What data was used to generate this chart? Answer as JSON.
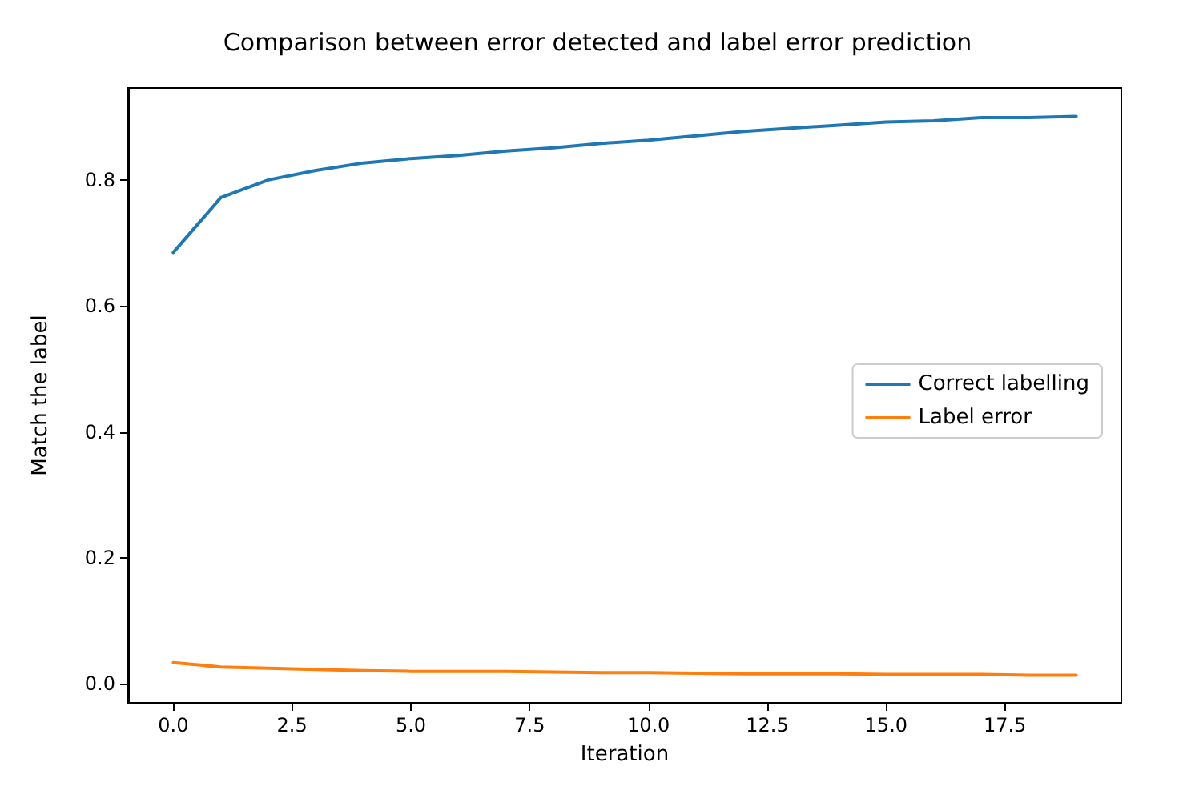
{
  "chart_data": {
    "type": "line",
    "title": "Comparison between error detected and label error prediction",
    "xlabel": "Iteration",
    "ylabel": "Match the label",
    "x": [
      0,
      1,
      2,
      3,
      4,
      5,
      6,
      7,
      8,
      9,
      10,
      11,
      12,
      13,
      14,
      15,
      16,
      17,
      18,
      19
    ],
    "series": [
      {
        "name": "Correct labelling",
        "color": "#1f77b4",
        "values": [
          0.685,
          0.772,
          0.8,
          0.815,
          0.827,
          0.834,
          0.839,
          0.846,
          0.851,
          0.858,
          0.863,
          0.87,
          0.877,
          0.882,
          0.887,
          0.892,
          0.894,
          0.899,
          0.899,
          0.901
        ]
      },
      {
        "name": "Label error",
        "color": "#ff7f0e",
        "values": [
          0.034,
          0.027,
          0.025,
          0.023,
          0.021,
          0.02,
          0.02,
          0.02,
          0.019,
          0.018,
          0.018,
          0.017,
          0.016,
          0.016,
          0.016,
          0.015,
          0.015,
          0.015,
          0.014,
          0.014
        ]
      }
    ],
    "xlim": [
      -0.95,
      19.95
    ],
    "ylim": [
      -0.03,
      0.946
    ],
    "xticks": [
      {
        "value": 0,
        "label": "0.0"
      },
      {
        "value": 2.5,
        "label": "2.5"
      },
      {
        "value": 5,
        "label": "5.0"
      },
      {
        "value": 7.5,
        "label": "7.5"
      },
      {
        "value": 10,
        "label": "10.0"
      },
      {
        "value": 12.5,
        "label": "12.5"
      },
      {
        "value": 15,
        "label": "15.0"
      },
      {
        "value": 17.5,
        "label": "17.5"
      }
    ],
    "yticks": [
      {
        "value": 0,
        "label": "0.0"
      },
      {
        "value": 0.2,
        "label": "0.2"
      },
      {
        "value": 0.4,
        "label": "0.4"
      },
      {
        "value": 0.6,
        "label": "0.6"
      },
      {
        "value": 0.8,
        "label": "0.8"
      }
    ],
    "grid": false,
    "legend": "right",
    "marker": "none",
    "line_style": "solid"
  }
}
